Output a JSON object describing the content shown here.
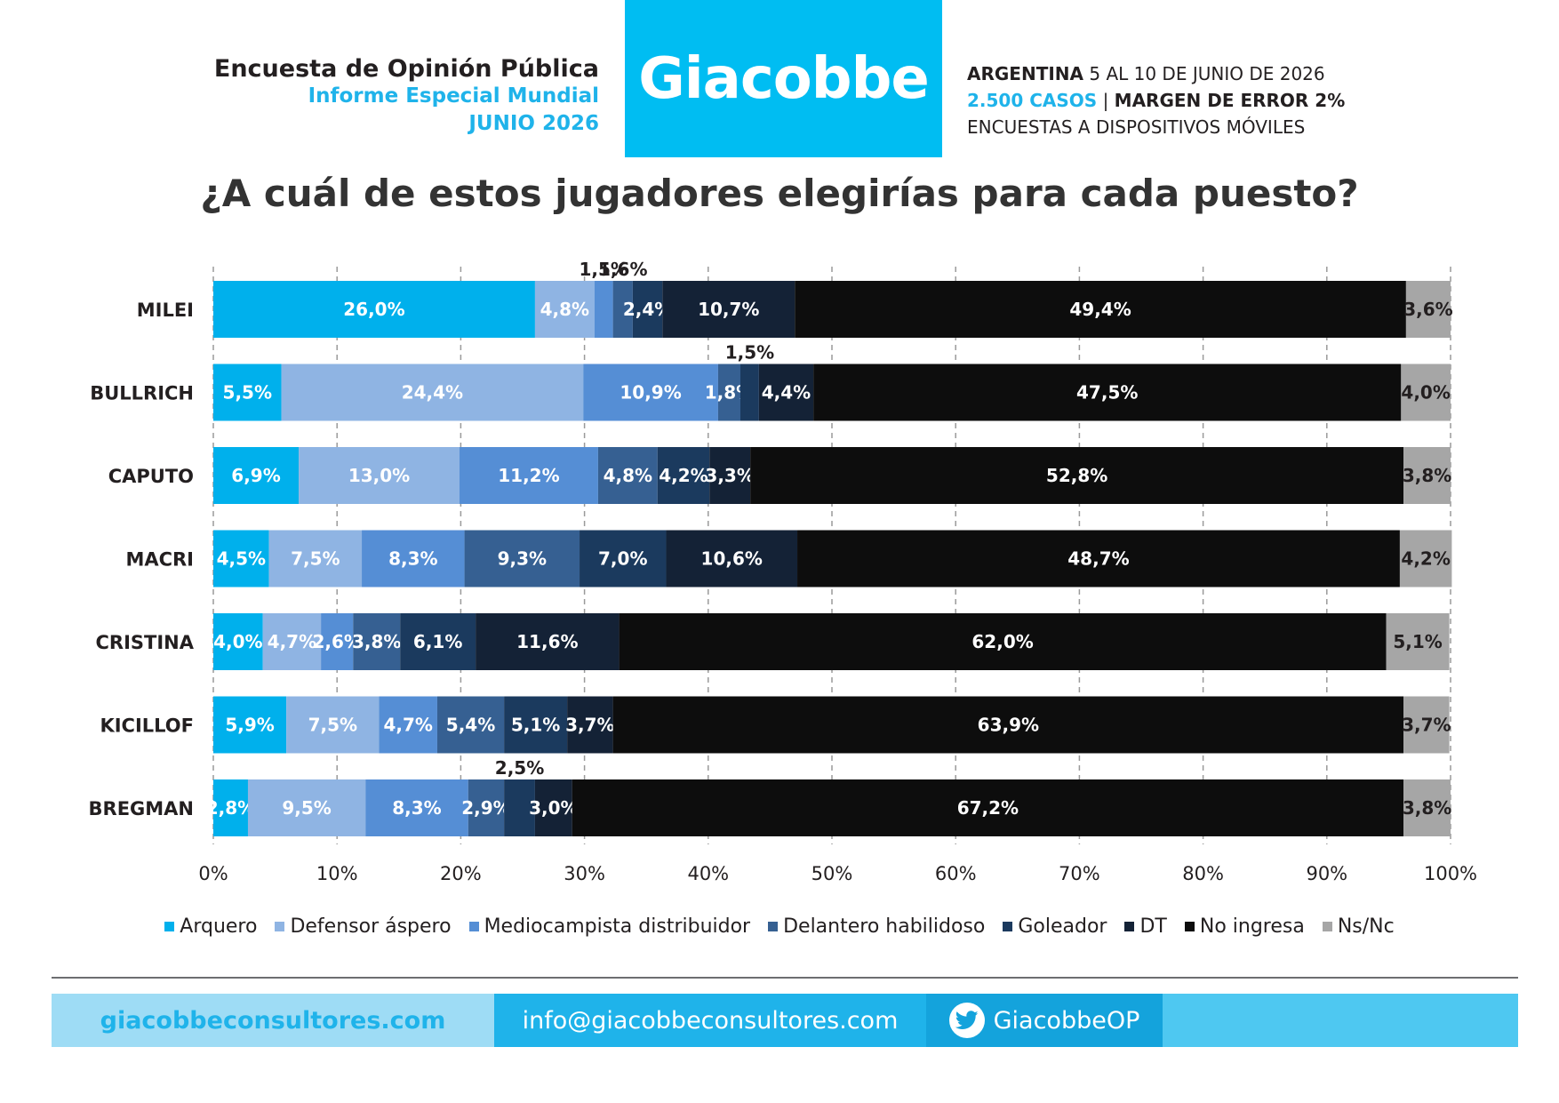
{
  "header": {
    "title": "Encuesta de Opinión Pública",
    "subtitle": "Informe Especial Mundial",
    "date": "JUNIO 2026",
    "brand": "Giacobbe",
    "country": "ARGENTINA",
    "fieldwork_dates": "5 AL 10 DE JUNIO DE 2026",
    "cases": "2.500 CASOS",
    "separator": "|",
    "margin": "MARGEN DE ERROR 2%",
    "method": "ENCUESTAS A DISPOSITIVOS MÓVILES"
  },
  "question": "¿A cuál de estos jugadores elegirías para cada puesto?",
  "chart_data": {
    "type": "bar",
    "orientation": "horizontal-stacked-100",
    "categories": [
      "MILEI",
      "BULLRICH",
      "CAPUTO",
      "MACRI",
      "CRISTINA",
      "KICILLOF",
      "BREGMAN"
    ],
    "series": [
      {
        "name": "Arquero",
        "color": "#00b0ec",
        "values": [
          26.0,
          5.5,
          6.9,
          4.5,
          4.0,
          5.9,
          2.8
        ],
        "labels": [
          "26,0%",
          "5,5%",
          "6,9%",
          "4,5%",
          "4,0%",
          "5,9%",
          "2,8%"
        ]
      },
      {
        "name": "Defensor áspero",
        "color": "#8fb4e3",
        "values": [
          4.8,
          24.4,
          13.0,
          7.5,
          4.7,
          7.5,
          9.5
        ],
        "labels": [
          "4,8%",
          "24,4%",
          "13,0%",
          "7,5%",
          "4,7%",
          "7,5%",
          "9,5%"
        ]
      },
      {
        "name": "Mediocampista distribuidor",
        "color": "#558ed5",
        "values": [
          1.5,
          10.9,
          11.2,
          8.3,
          2.6,
          4.7,
          8.3
        ],
        "labels": [
          "1,5%",
          "10,9%",
          "11,2%",
          "8,3%",
          "2,6%",
          "4,7%",
          "8,3%"
        ]
      },
      {
        "name": "Delantero habilidoso",
        "color": "#366092",
        "values": [
          1.6,
          1.8,
          4.8,
          9.3,
          3.8,
          5.4,
          2.9
        ],
        "labels": [
          "1,6%",
          "1,8%",
          "4,8%",
          "9,3%",
          "3,8%",
          "5,4%",
          "2,9%"
        ]
      },
      {
        "name": "Goleador",
        "color": "#1b3a5e",
        "values": [
          2.4,
          1.5,
          4.2,
          7.0,
          6.1,
          5.1,
          2.5
        ],
        "labels": [
          "2,4%",
          "1,5%",
          "4,2%",
          "7,0%",
          "6,1%",
          "5,1%",
          "2,5%"
        ]
      },
      {
        "name": "DT",
        "color": "#142236",
        "values": [
          10.7,
          4.4,
          3.3,
          10.6,
          11.6,
          3.7,
          3.0
        ],
        "labels": [
          "10,7%",
          "4,4%",
          "3,3%",
          "10,6%",
          "11,6%",
          "3,7%",
          "3,0%"
        ]
      },
      {
        "name": "No ingresa",
        "color": "#0d0d0d",
        "values": [
          49.4,
          47.5,
          52.8,
          48.7,
          62.0,
          63.9,
          67.2
        ],
        "labels": [
          "49,4%",
          "47,5%",
          "52,8%",
          "48,7%",
          "62,0%",
          "63,9%",
          "67,2%"
        ]
      },
      {
        "name": "Ns/Nc",
        "color": "#a6a6a6",
        "values": [
          3.6,
          4.0,
          3.8,
          4.2,
          5.1,
          3.7,
          3.8
        ],
        "labels": [
          "3,6%",
          "4,0%",
          "3,8%",
          "4,2%",
          "5,1%",
          "3,7%",
          "3,8%"
        ]
      }
    ],
    "outside_labels": [
      {
        "category": "MILEI",
        "series": "Mediocampista distribuidor",
        "label": "1,5%"
      },
      {
        "category": "MILEI",
        "series": "Delantero habilidoso",
        "label": "1,6%"
      },
      {
        "category": "BULLRICH",
        "series": "Goleador",
        "label": "1,5%"
      },
      {
        "category": "BREGMAN",
        "series": "Goleador",
        "label": "2,5%"
      }
    ],
    "xlim": [
      0,
      100
    ],
    "xticks": [
      "0%",
      "10%",
      "20%",
      "30%",
      "40%",
      "50%",
      "60%",
      "70%",
      "80%",
      "90%",
      "100%"
    ],
    "grid": true,
    "legend_position": "bottom"
  },
  "footer": {
    "website": "giacobbeconsultores.com",
    "email": "info@giacobbeconsultores.com",
    "twitter": "GiacobbeOP"
  }
}
